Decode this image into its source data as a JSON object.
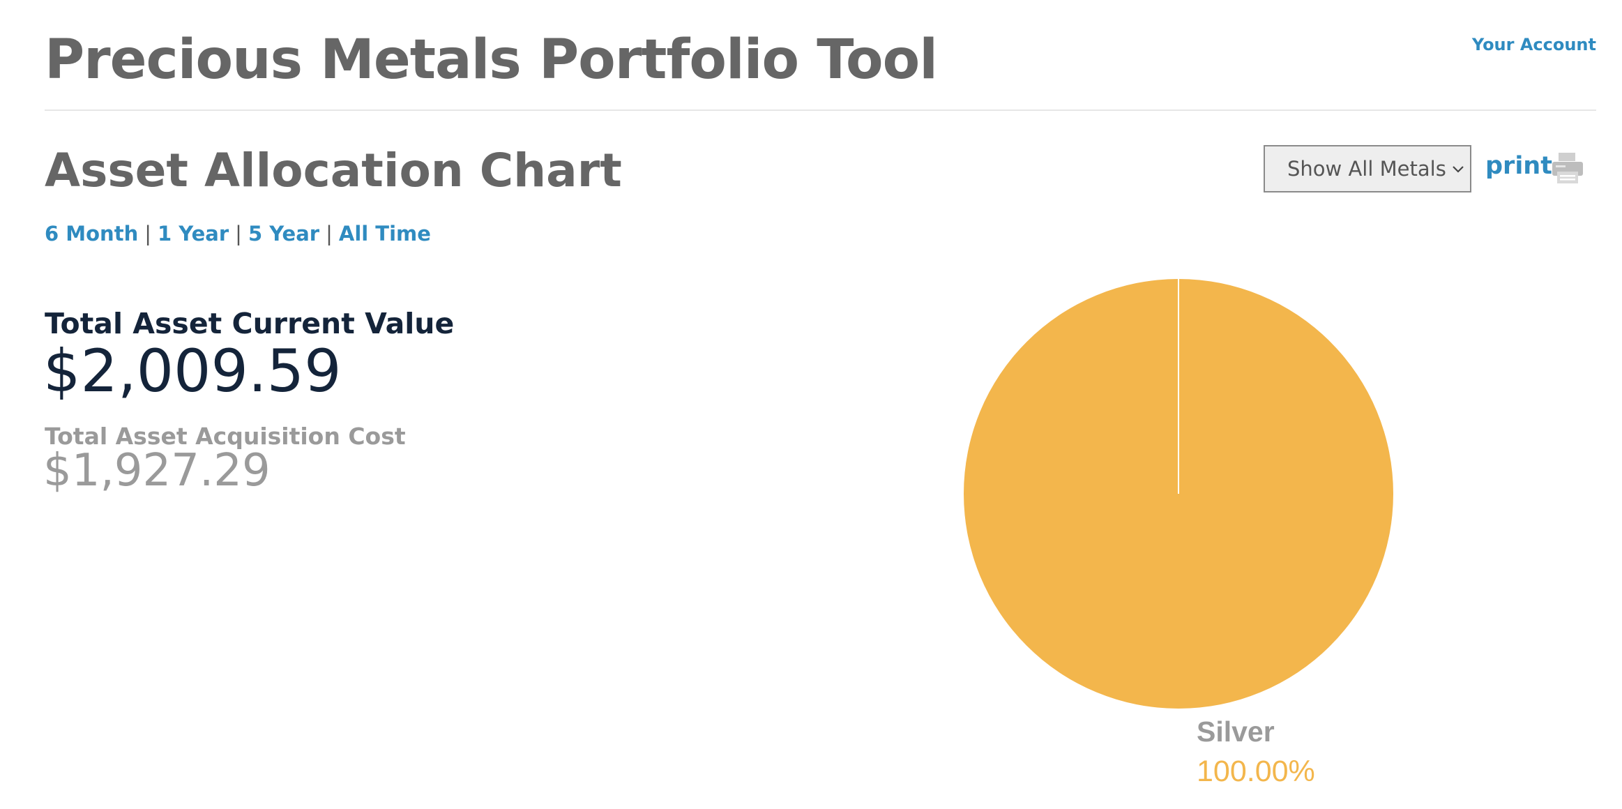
{
  "header": {
    "title": "Precious Metals Portfolio Tool",
    "account_link": "Your Account"
  },
  "section": {
    "title": "Asset Allocation Chart"
  },
  "toolbar": {
    "metal_filter": {
      "selected": "Show All Metals",
      "icon": "chevron-down-icon"
    },
    "print_label": "print",
    "print_icon": "printer-icon"
  },
  "time_ranges": [
    {
      "label": "6 Month"
    },
    {
      "label": "1 Year"
    },
    {
      "label": "5 Year"
    },
    {
      "label": "All Time"
    }
  ],
  "summary": {
    "current_value_label": "Total Asset Current Value",
    "current_value": "$2,009.59",
    "acquisition_cost_label": "Total Asset Acquisition Cost",
    "acquisition_cost": "$1,927.29"
  },
  "colors": {
    "link": "#2f8bc0",
    "title": "#666666",
    "value_dark": "#14243a",
    "muted": "#9a9a9a",
    "silver_slice": "#f3b64c"
  },
  "chart_data": {
    "type": "pie",
    "title": "",
    "labels": [
      "Silver"
    ],
    "values": [
      100.0
    ],
    "value_labels": [
      "100.00%"
    ],
    "colors": [
      "#f3b64c"
    ],
    "legend": "none"
  }
}
